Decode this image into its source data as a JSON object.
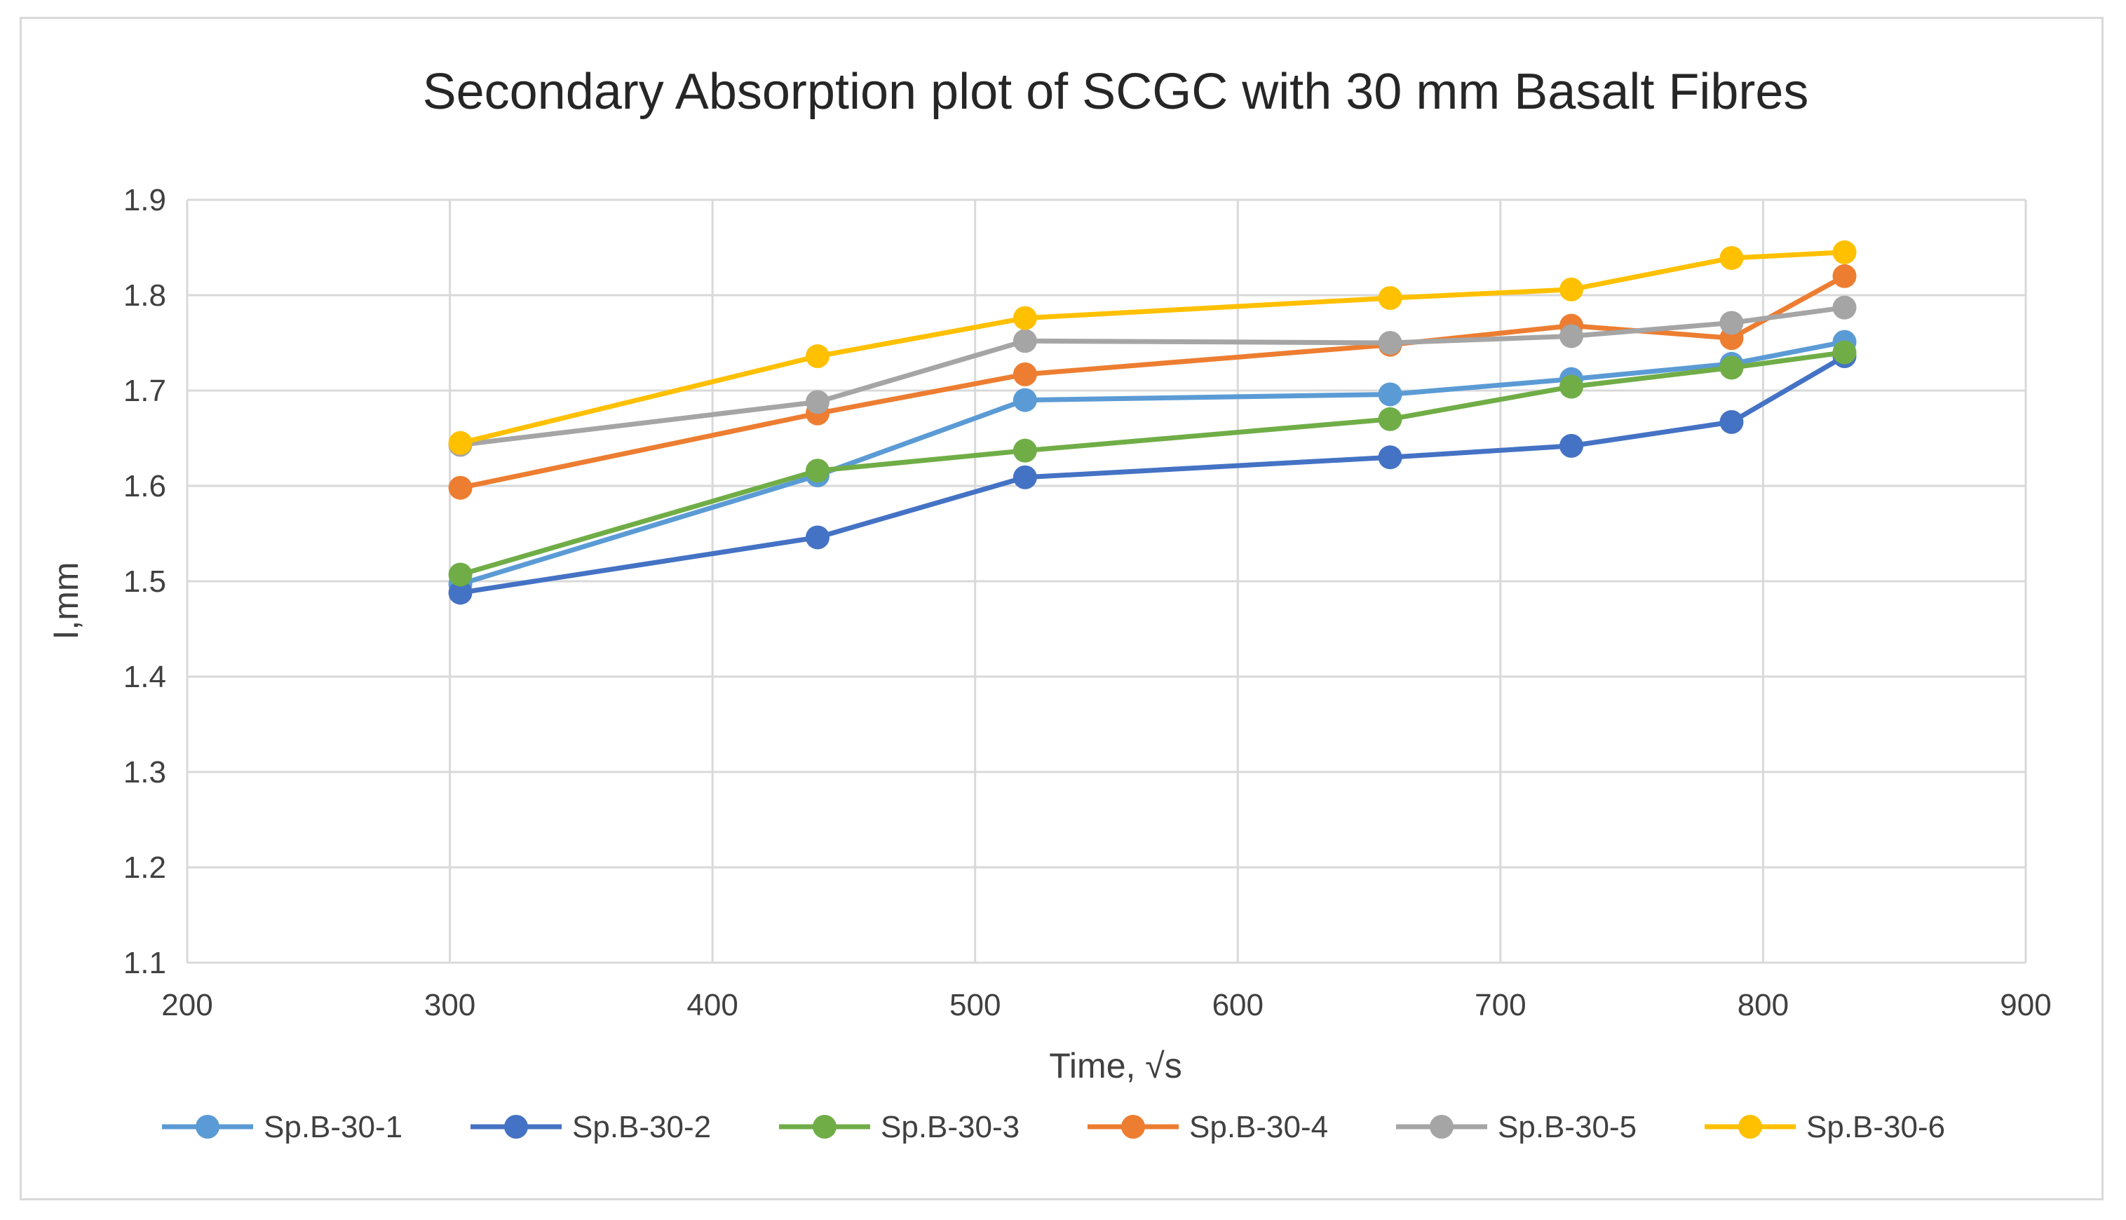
{
  "chart_data": {
    "type": "line",
    "title": "Secondary Absorption plot of SCGC with 30 mm Basalt Fibres",
    "xlabel": "Time, √s",
    "ylabel": "I,mm",
    "xlim": [
      200,
      900
    ],
    "ylim": [
      1.1,
      1.9
    ],
    "x_ticks": [
      "200",
      "300",
      "400",
      "500",
      "600",
      "700",
      "800",
      "900"
    ],
    "y_ticks": [
      "1.1",
      "1.2",
      "1.3",
      "1.4",
      "1.5",
      "1.6",
      "1.7",
      "1.8",
      "1.9"
    ],
    "grid": true,
    "legend_position": "bottom",
    "x": [
      304,
      440,
      519,
      658,
      727,
      788,
      831
    ],
    "series": [
      {
        "name": "Sp.B-30-1",
        "color": "#5b9bd5",
        "values": [
          1.497,
          1.611,
          1.69,
          1.696,
          1.712,
          1.728,
          1.751
        ]
      },
      {
        "name": "Sp.B-30-2",
        "color": "#4472c4",
        "values": [
          1.488,
          1.546,
          1.609,
          1.63,
          1.642,
          1.667,
          1.736
        ]
      },
      {
        "name": "Sp.B-30-3",
        "color": "#70ad47",
        "values": [
          1.507,
          1.616,
          1.637,
          1.67,
          1.704,
          1.724,
          1.74
        ]
      },
      {
        "name": "Sp.B-30-4",
        "color": "#ed7d31",
        "values": [
          1.598,
          1.676,
          1.717,
          1.748,
          1.768,
          1.755,
          1.82
        ]
      },
      {
        "name": "Sp.B-30-5",
        "color": "#a5a5a5",
        "values": [
          1.643,
          1.688,
          1.752,
          1.75,
          1.757,
          1.771,
          1.787
        ]
      },
      {
        "name": "Sp.B-30-6",
        "color": "#ffc000",
        "values": [
          1.645,
          1.736,
          1.776,
          1.797,
          1.806,
          1.839,
          1.845
        ]
      }
    ]
  }
}
